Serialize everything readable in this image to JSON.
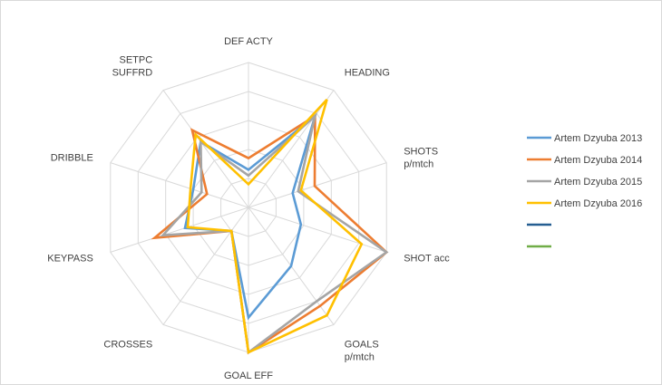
{
  "chart_data": {
    "type": "radar",
    "title": "",
    "axes": [
      "DEF ACTY",
      "HEADING",
      "SHOTS p/mtch",
      "SHOT acc",
      "GOALS p/mtch",
      "GOAL EFF",
      "CROSSES",
      "KEYPASS",
      "DRIBBLE",
      "SETPC SUFFRD"
    ],
    "axis_label_lines": [
      [
        "DEF ACTY"
      ],
      [
        "HEADING"
      ],
      [
        "SHOTS",
        "p/mtch"
      ],
      [
        "SHOT acc"
      ],
      [
        "GOALS",
        "p/mtch"
      ],
      [
        "GOAL EFF"
      ],
      [
        "CROSSES"
      ],
      [
        "KEYPASS"
      ],
      [
        "DRIBBLE"
      ],
      [
        "SETPC",
        "SUFFRD"
      ]
    ],
    "rmax": 5,
    "gridlines": 5,
    "series": [
      {
        "name": "Artem Dzyuba 2013",
        "color": "#5b9bd5",
        "values": [
          1.3,
          3.9,
          1.6,
          1.9,
          2.5,
          3.8,
          1.0,
          2.3,
          2.0,
          2.8
        ]
      },
      {
        "name": "Artem Dzyuba 2014",
        "color": "#ed7d31",
        "values": [
          1.7,
          3.9,
          2.4,
          5.0,
          4.2,
          5.0,
          1.0,
          3.4,
          1.5,
          3.3
        ]
      },
      {
        "name": "Artem Dzyuba 2015",
        "color": "#a5a5a5",
        "values": [
          1.1,
          3.9,
          1.8,
          5.0,
          4.0,
          5.0,
          1.0,
          3.1,
          1.7,
          2.8
        ]
      },
      {
        "name": "Artem Dzyuba 2016",
        "color": "#ffc000",
        "values": [
          0.8,
          4.6,
          1.9,
          4.1,
          4.6,
          5.0,
          1.0,
          2.2,
          2.1,
          3.1
        ]
      },
      {
        "name": "",
        "color": "#255e91",
        "values": []
      },
      {
        "name": "",
        "color": "#70ad47",
        "values": []
      }
    ]
  }
}
